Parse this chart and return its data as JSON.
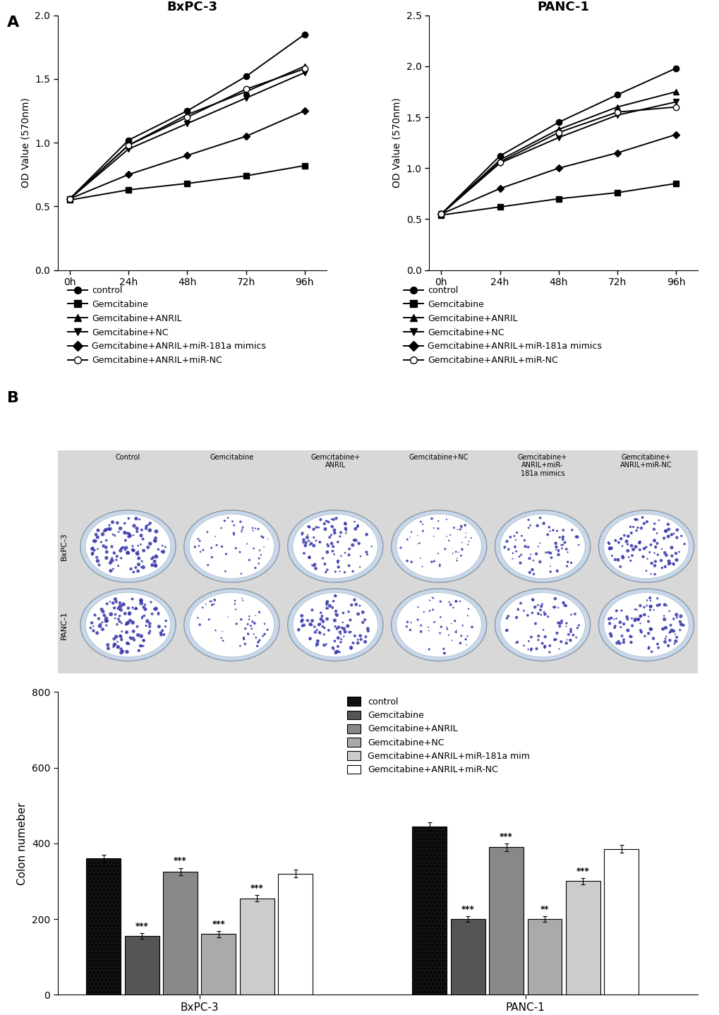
{
  "bxpc3_title": "BxPC-3",
  "panc1_title": "PANC-1",
  "xticks": [
    0,
    24,
    48,
    72,
    96
  ],
  "xticklabels": [
    "0h",
    "24h",
    "48h",
    "72h",
    "96h"
  ],
  "bxpc3_ylim": [
    0.0,
    2.0
  ],
  "bxpc3_yticks": [
    0.0,
    0.5,
    1.0,
    1.5,
    2.0
  ],
  "panc1_ylim": [
    0.0,
    2.5
  ],
  "panc1_yticks": [
    0.0,
    0.5,
    1.0,
    1.5,
    2.0,
    2.5
  ],
  "ylabel": "OD Value (570nm)",
  "legend_labels": [
    "control",
    "Gemcitabine",
    "Gemcitabine+ANRIL",
    "Gemcitabine+NC",
    "Gemcitabine+ANRIL+miR-181a mimics",
    "Gemcitabine+ANRIL+miR-NC"
  ],
  "bxpc3_data": {
    "control": [
      0.56,
      1.02,
      1.25,
      1.52,
      1.85
    ],
    "gemcitabine": [
      0.55,
      0.63,
      0.68,
      0.74,
      0.82
    ],
    "gem_anril": [
      0.56,
      0.98,
      1.22,
      1.4,
      1.6
    ],
    "gem_nc": [
      0.56,
      0.95,
      1.15,
      1.35,
      1.55
    ],
    "gem_anril_mir181": [
      0.56,
      0.75,
      0.9,
      1.05,
      1.25
    ],
    "gem_anril_mirnc": [
      0.56,
      0.98,
      1.2,
      1.42,
      1.58
    ]
  },
  "panc1_data": {
    "control": [
      0.55,
      1.12,
      1.45,
      1.72,
      1.98
    ],
    "gemcitabine": [
      0.54,
      0.62,
      0.7,
      0.76,
      0.85
    ],
    "gem_anril": [
      0.55,
      1.08,
      1.38,
      1.6,
      1.75
    ],
    "gem_nc": [
      0.55,
      1.05,
      1.3,
      1.52,
      1.65
    ],
    "gem_anril_mir181": [
      0.55,
      0.8,
      1.0,
      1.15,
      1.33
    ],
    "gem_anril_mirnc": [
      0.55,
      1.06,
      1.35,
      1.55,
      1.6
    ]
  },
  "bar_groups": [
    "control",
    "Gemcitabine",
    "Gemcitabine+ANRIL",
    "Gemcitabine+NC",
    "Gemcitabine+ANRIL+miR-181a mim",
    "Gemcitabine+ANRIL+miR-NC"
  ],
  "bar_colors": [
    "#111111",
    "#555555",
    "#888888",
    "#aaaaaa",
    "#cccccc",
    "#ffffff"
  ],
  "bar_data": {
    "BxPC-3": [
      360,
      155,
      325,
      160,
      255,
      320
    ],
    "PANC-1": [
      445,
      200,
      390,
      200,
      300,
      385
    ]
  },
  "bar_errors": {
    "BxPC-3": [
      10,
      8,
      10,
      8,
      8,
      10
    ],
    "PANC-1": [
      10,
      8,
      10,
      8,
      8,
      10
    ]
  },
  "bar_ylim": [
    0,
    800
  ],
  "bar_yticks": [
    0,
    200,
    400,
    600,
    800
  ],
  "bar_ylabel": "Colon numeber",
  "bar_xlabel_cats": [
    "BxPC-3",
    "PANC-1"
  ],
  "panel_label_A": "A",
  "panel_label_B": "B",
  "background_color": "#ffffff",
  "colony_col_headers": [
    "Control",
    "Gemcitabine",
    "Gemcitabine+\nANRIL",
    "Gemcitabine+NC",
    "Gemcitabine+\nANRIL+miR-\n181a mimics",
    "Gemcitabine+\nANRIL+miR-NC"
  ],
  "colony_row_labels": [
    "BxPC-3",
    "PANC-1"
  ],
  "colony_density": [
    0.95,
    0.38,
    0.75,
    0.4,
    0.6,
    0.78
  ],
  "colony_density_panc1": [
    1.0,
    0.4,
    0.8,
    0.42,
    0.62,
    0.8
  ]
}
